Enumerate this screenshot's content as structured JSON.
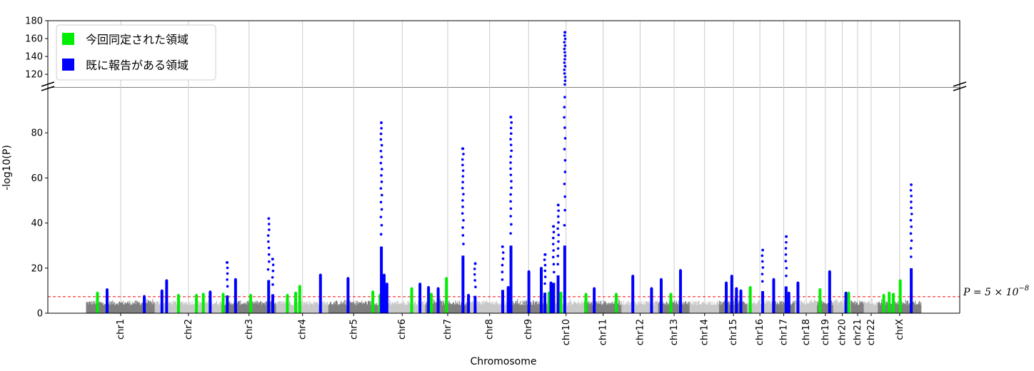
{
  "chart_data": {
    "type": "scatter",
    "title": "",
    "xlabel": "Chromosome",
    "ylabel": "-log10(P)",
    "y_axis_break": {
      "lower_ticks": [
        0,
        20,
        40,
        60,
        80
      ],
      "upper_ticks": [
        120,
        140,
        160,
        180
      ]
    },
    "ylim_lower": [
      0,
      100
    ],
    "ylim_upper": [
      105,
      180
    ],
    "grid": "vertical lines at chromosome centers",
    "threshold": {
      "value": 7.3,
      "label_prefix": "P = 5 × 10",
      "label_exp": "−8",
      "color": "#ff0000"
    },
    "legend": {
      "placement": "top-left",
      "entries": [
        {
          "label": "今回同定された領域",
          "color": "#00ee00"
        },
        {
          "label": "既に報告がある領域",
          "color": "#0000ff"
        }
      ]
    },
    "chromosomes": [
      "chr1",
      "chr2",
      "chr3",
      "chr4",
      "chr5",
      "chr6",
      "chr7",
      "chr8",
      "chr9",
      "chr10",
      "chr11",
      "chr12",
      "chr13",
      "chr14",
      "chr15",
      "chr16",
      "chr17",
      "chr18",
      "chr19",
      "chr20",
      "chr21",
      "chr22",
      "chrX"
    ],
    "chromosome_lengths_mb": [
      249,
      242,
      198,
      190,
      181,
      171,
      159,
      145,
      138,
      134,
      135,
      133,
      114,
      107,
      102,
      90,
      83,
      80,
      59,
      64,
      47,
      51,
      156
    ],
    "background_colors": [
      "#7f7f7f",
      "#c8c8c8"
    ],
    "peaks": [
      {
        "chr": "chr1",
        "pos": 40,
        "p": 9,
        "kind": "new"
      },
      {
        "chr": "chr1",
        "pos": 75,
        "p": 10.5,
        "kind": "reported"
      },
      {
        "chr": "chr1",
        "pos": 210,
        "p": 7.5,
        "kind": "reported"
      },
      {
        "chr": "chr2",
        "pos": 25,
        "p": 10,
        "kind": "reported"
      },
      {
        "chr": "chr2",
        "pos": 42,
        "p": 14.5,
        "kind": "reported"
      },
      {
        "chr": "chr2",
        "pos": 85,
        "p": 8,
        "kind": "new"
      },
      {
        "chr": "chr2",
        "pos": 150,
        "p": 8,
        "kind": "new"
      },
      {
        "chr": "chr2",
        "pos": 175,
        "p": 8.5,
        "kind": "new"
      },
      {
        "chr": "chr2",
        "pos": 200,
        "p": 9.5,
        "kind": "reported"
      },
      {
        "chr": "chr3",
        "pos": 5,
        "p": 8.5,
        "kind": "new"
      },
      {
        "chr": "chr3",
        "pos": 20,
        "p": 22.5,
        "kind": "reported"
      },
      {
        "chr": "chr3",
        "pos": 50,
        "p": 15,
        "kind": "reported"
      },
      {
        "chr": "chr3",
        "pos": 105,
        "p": 8,
        "kind": "new"
      },
      {
        "chr": "chr3",
        "pos": 170,
        "p": 42,
        "kind": "reported"
      },
      {
        "chr": "chr3",
        "pos": 185,
        "p": 24,
        "kind": "reported"
      },
      {
        "chr": "chr4",
        "pos": 40,
        "p": 8,
        "kind": "new"
      },
      {
        "chr": "chr4",
        "pos": 70,
        "p": 9,
        "kind": "new"
      },
      {
        "chr": "chr4",
        "pos": 85,
        "p": 12,
        "kind": "new"
      },
      {
        "chr": "chr4",
        "pos": 160,
        "p": 17,
        "kind": "reported"
      },
      {
        "chr": "chr5",
        "pos": 70,
        "p": 15.5,
        "kind": "reported"
      },
      {
        "chr": "chr5",
        "pos": 160,
        "p": 9.5,
        "kind": "new"
      },
      {
        "chr": "chr6",
        "pos": 5,
        "p": 8,
        "kind": "new"
      },
      {
        "chr": "chr6",
        "pos": 10,
        "p": 84.5,
        "kind": "reported"
      },
      {
        "chr": "chr6",
        "pos": 20,
        "p": 17,
        "kind": "reported"
      },
      {
        "chr": "chr6",
        "pos": 30,
        "p": 13,
        "kind": "reported"
      },
      {
        "chr": "chr6",
        "pos": 120,
        "p": 11,
        "kind": "new"
      },
      {
        "chr": "chr6",
        "pos": 150,
        "p": 13,
        "kind": "reported"
      },
      {
        "chr": "chr7",
        "pos": 10,
        "p": 11.5,
        "kind": "reported"
      },
      {
        "chr": "chr7",
        "pos": 20,
        "p": 8.5,
        "kind": "new"
      },
      {
        "chr": "chr7",
        "pos": 45,
        "p": 11,
        "kind": "reported"
      },
      {
        "chr": "chr7",
        "pos": 75,
        "p": 15.5,
        "kind": "new"
      },
      {
        "chr": "chr7",
        "pos": 135,
        "p": 73,
        "kind": "reported"
      },
      {
        "chr": "chr7",
        "pos": 155,
        "p": 8,
        "kind": "reported"
      },
      {
        "chr": "chr8",
        "pos": 20,
        "p": 22,
        "kind": "reported"
      },
      {
        "chr": "chr8",
        "pos": 120,
        "p": 29.5,
        "kind": "reported"
      },
      {
        "chr": "chr8",
        "pos": 140,
        "p": 11.5,
        "kind": "reported"
      },
      {
        "chr": "chr9",
        "pos": 5,
        "p": 87,
        "kind": "reported"
      },
      {
        "chr": "chr9",
        "pos": 70,
        "p": 18.5,
        "kind": "reported"
      },
      {
        "chr": "chr9",
        "pos": 115,
        "p": 20,
        "kind": "reported"
      },
      {
        "chr": "chr9",
        "pos": 128,
        "p": 26,
        "kind": "reported"
      },
      {
        "chr": "chr10",
        "pos": 5,
        "p": 9,
        "kind": "new"
      },
      {
        "chr": "chr10",
        "pos": 12,
        "p": 13.5,
        "kind": "reported"
      },
      {
        "chr": "chr10",
        "pos": 22,
        "p": 38.5,
        "kind": "reported"
      },
      {
        "chr": "chr10",
        "pos": 38,
        "p": 48,
        "kind": "reported"
      },
      {
        "chr": "chr10",
        "pos": 48,
        "p": 9,
        "kind": "new"
      },
      {
        "chr": "chr10",
        "pos": 62,
        "p": 167,
        "kind": "reported"
      },
      {
        "chr": "chr11",
        "pos": 5,
        "p": 8.5,
        "kind": "new"
      },
      {
        "chr": "chr11",
        "pos": 35,
        "p": 11,
        "kind": "reported"
      },
      {
        "chr": "chr11",
        "pos": 115,
        "p": 8.5,
        "kind": "new"
      },
      {
        "chr": "chr12",
        "pos": 40,
        "p": 16.5,
        "kind": "reported"
      },
      {
        "chr": "chr12",
        "pos": 108,
        "p": 11,
        "kind": "reported"
      },
      {
        "chr": "chr13",
        "pos": 10,
        "p": 15,
        "kind": "reported"
      },
      {
        "chr": "chr13",
        "pos": 45,
        "p": 8.5,
        "kind": "new"
      },
      {
        "chr": "chr13",
        "pos": 80,
        "p": 19,
        "kind": "reported"
      },
      {
        "chr": "chr15",
        "pos": 25,
        "p": 13.5,
        "kind": "reported"
      },
      {
        "chr": "chr15",
        "pos": 45,
        "p": 16.5,
        "kind": "reported"
      },
      {
        "chr": "chr15",
        "pos": 62,
        "p": 11,
        "kind": "reported"
      },
      {
        "chr": "chr15",
        "pos": 78,
        "p": 10,
        "kind": "reported"
      },
      {
        "chr": "chr16",
        "pos": 10,
        "p": 11.5,
        "kind": "new"
      },
      {
        "chr": "chr16",
        "pos": 55,
        "p": 28,
        "kind": "reported"
      },
      {
        "chr": "chr17",
        "pos": 5,
        "p": 15,
        "kind": "reported"
      },
      {
        "chr": "chr17",
        "pos": 50,
        "p": 34,
        "kind": "reported"
      },
      {
        "chr": "chr17",
        "pos": 60,
        "p": 9,
        "kind": "reported"
      },
      {
        "chr": "chr18",
        "pos": 10,
        "p": 13.5,
        "kind": "reported"
      },
      {
        "chr": "chr19",
        "pos": 10,
        "p": 10.5,
        "kind": "new"
      },
      {
        "chr": "chr19",
        "pos": 45,
        "p": 18.5,
        "kind": "reported"
      },
      {
        "chr": "chr20",
        "pos": 45,
        "p": 9,
        "kind": "reported"
      },
      {
        "chr": "chr20",
        "pos": 55,
        "p": 9,
        "kind": "new"
      },
      {
        "chr": "chrX",
        "pos": 20,
        "p": 8,
        "kind": "new"
      },
      {
        "chr": "chrX",
        "pos": 40,
        "p": 9,
        "kind": "new"
      },
      {
        "chr": "chrX",
        "pos": 55,
        "p": 8.5,
        "kind": "new"
      },
      {
        "chr": "chrX",
        "pos": 80,
        "p": 14.5,
        "kind": "new"
      },
      {
        "chr": "chrX",
        "pos": 120,
        "p": 57,
        "kind": "reported"
      }
    ]
  }
}
